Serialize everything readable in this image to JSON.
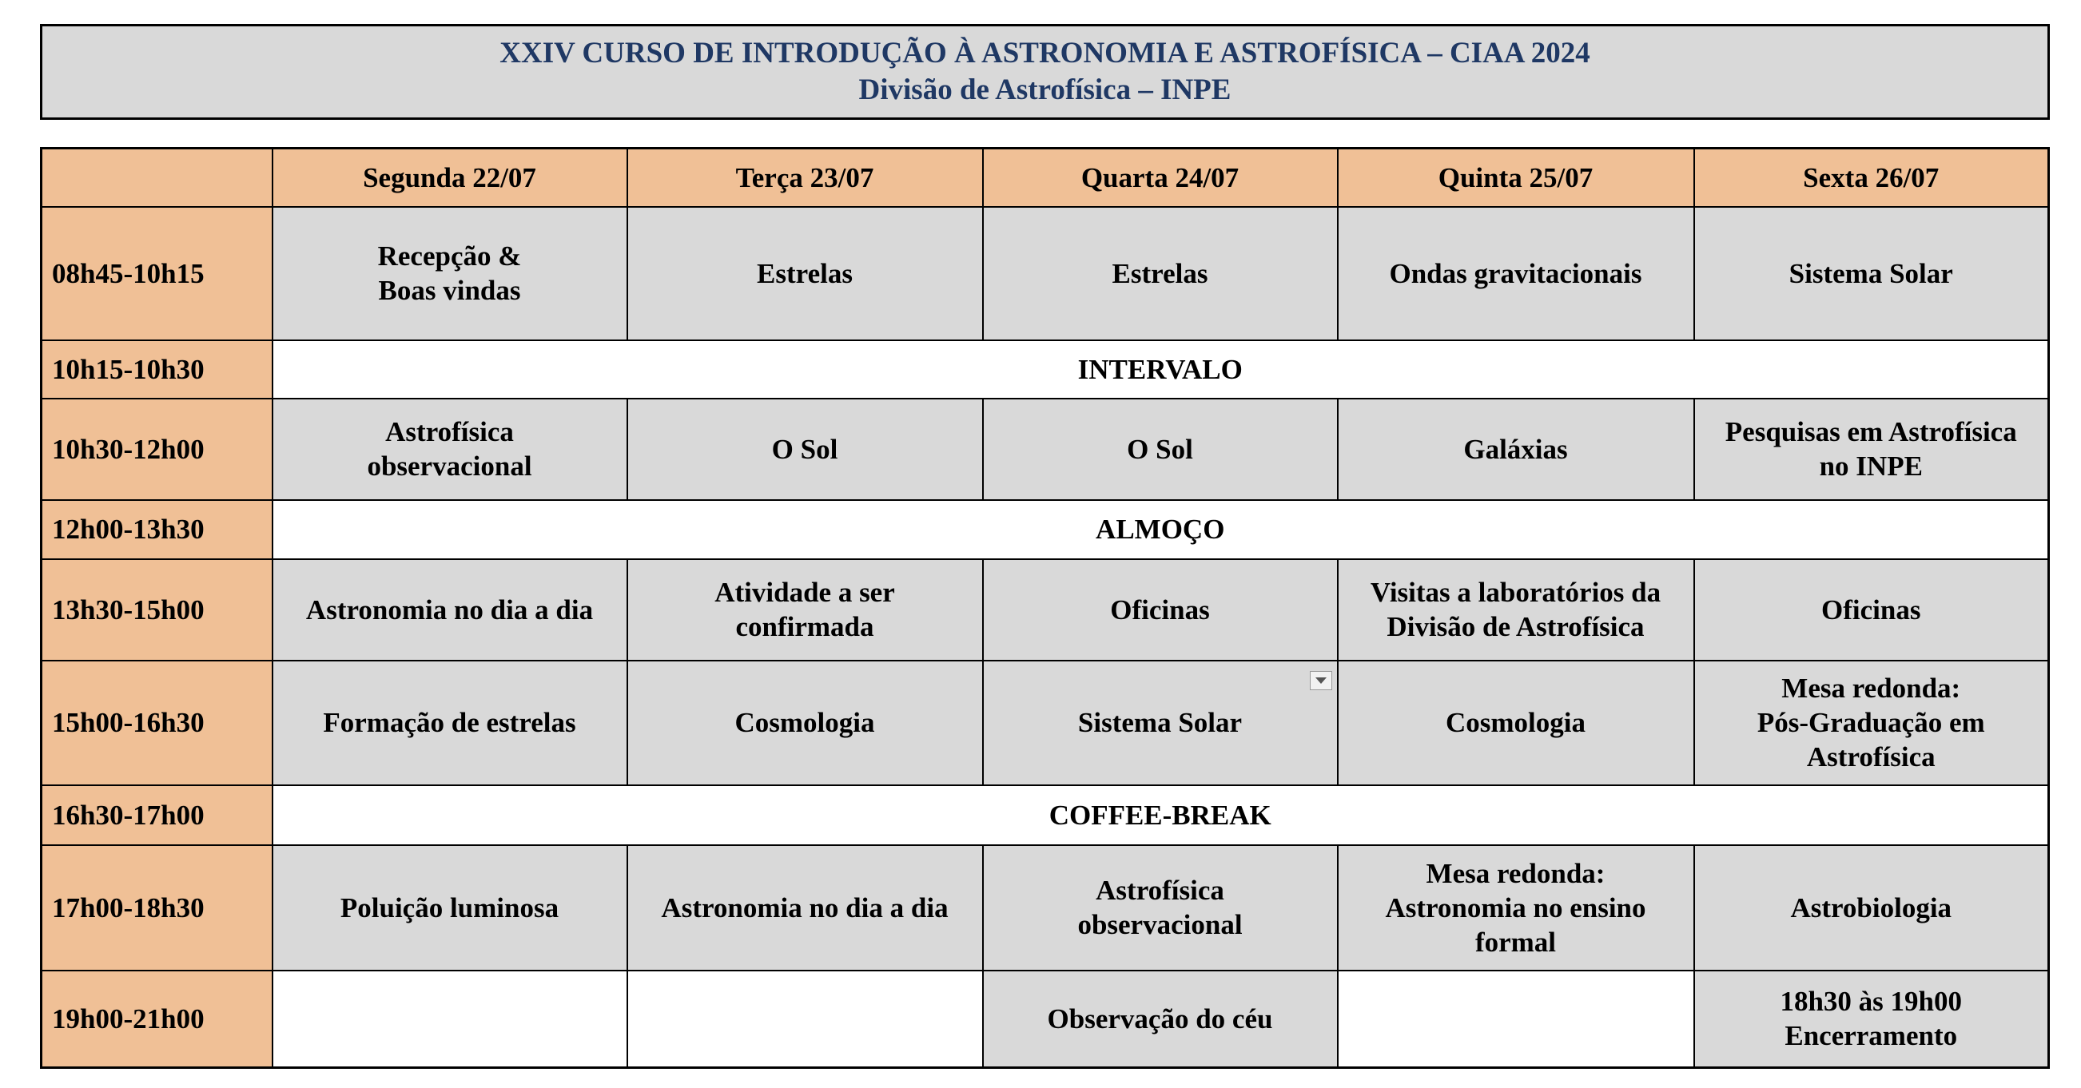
{
  "title": {
    "line1": "XXIV CURSO DE INTRODUÇÃO À ASTRONOMIA E ASTROFÍSICA – CIAA 2024",
    "line2": "Divisão de Astrofísica – INPE"
  },
  "days": [
    "Segunda 22/07",
    "Terça 23/07",
    "Quarta 24/07",
    "Quinta 25/07",
    "Sexta 26/07"
  ],
  "rows": [
    {
      "time": "08h45-10h15",
      "cells": [
        "Recepção &\nBoas vindas",
        "Estrelas",
        "Estrelas",
        "Ondas gravitacionais",
        "Sistema Solar"
      ]
    },
    {
      "time": "10h15-10h30",
      "span": "INTERVALO"
    },
    {
      "time": "10h30-12h00",
      "cells": [
        "Astrofísica\nobservacional",
        "O Sol",
        "O Sol",
        "Galáxias",
        "Pesquisas em Astrofísica\nno INPE"
      ]
    },
    {
      "time": "12h00-13h30",
      "span": "ALMOÇO"
    },
    {
      "time": "13h30-15h00",
      "cells": [
        "Astronomia no dia a dia",
        "Atividade a ser\nconfirmada",
        "Oficinas",
        "Visitas a laboratórios da\nDivisão de Astrofísica",
        "Oficinas"
      ]
    },
    {
      "time": "15h00-16h30",
      "cells": [
        "Formação de estrelas",
        "Cosmologia",
        "Sistema Solar",
        "Cosmologia",
        "Mesa redonda:\nPós-Graduação em\nAstrofísica"
      ]
    },
    {
      "time": "16h30-17h00",
      "span": "COFFEE-BREAK"
    },
    {
      "time": "17h00-18h30",
      "cells": [
        "Poluição luminosa",
        "Astronomia no dia a dia",
        "Astrofísica\nobservacional",
        "Mesa redonda:\nAstronomia no ensino\nformal",
        "Astrobiologia"
      ]
    },
    {
      "time": "19h00-21h00",
      "cells": [
        "",
        "",
        "Observação do céu",
        "",
        "18h30 às 19h00\nEncerramento"
      ]
    }
  ],
  "colors": {
    "header_bg": "#f0c096",
    "cell_bg": "#d9d9d9",
    "title_color": "#1f3864"
  }
}
